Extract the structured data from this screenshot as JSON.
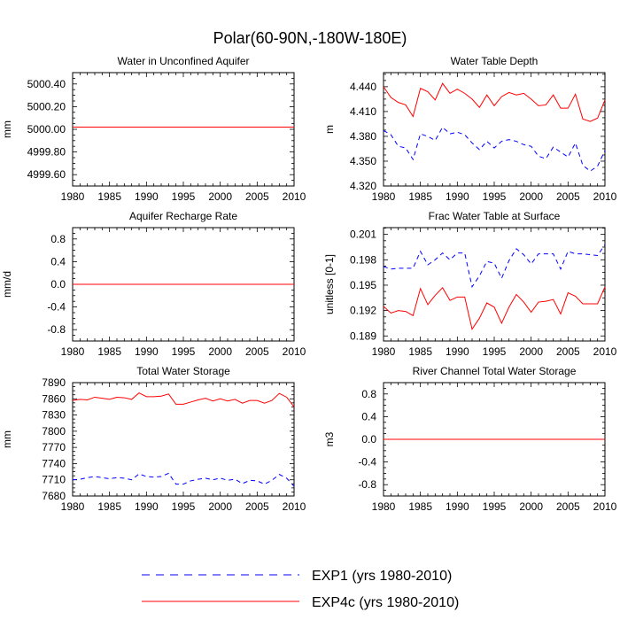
{
  "figure_title": "Polar(60-90N,-180W-180E)",
  "legend": {
    "entries": [
      {
        "label": "EXP1 (yrs 1980-2010)",
        "color": "#0000ff",
        "style": "dashed"
      },
      {
        "label": "EXP4c (yrs 1980-2010)",
        "color": "#ff0000",
        "style": "solid"
      }
    ]
  },
  "chart_data": [
    {
      "type": "line",
      "title": "Water in Unconfined Aquifer",
      "xlabel": "",
      "ylabel": "mm",
      "xlim": [
        1980,
        2010
      ],
      "ylim": [
        4999.5,
        5000.5
      ],
      "xticks": [
        1980,
        1985,
        1990,
        1995,
        2000,
        2005,
        2010
      ],
      "yticks": [
        5000.4,
        5000.2,
        5000.0,
        4999.8,
        4999.6
      ],
      "ytick_labels": [
        "5000.40",
        "5000.20",
        "5000.00",
        "4999.80",
        "4999.60"
      ],
      "x": [
        1980,
        1981,
        1982,
        1983,
        1984,
        1985,
        1986,
        1987,
        1988,
        1989,
        1990,
        1991,
        1992,
        1993,
        1994,
        1995,
        1996,
        1997,
        1998,
        1999,
        2000,
        2001,
        2002,
        2003,
        2004,
        2005,
        2006,
        2007,
        2008,
        2009,
        2010
      ],
      "series": [
        {
          "name": "EXP1",
          "color": "#0000ff",
          "dash": true,
          "values": [
            5000.02,
            5000.02,
            5000.02,
            5000.02,
            5000.02,
            5000.02,
            5000.02,
            5000.02,
            5000.02,
            5000.02,
            5000.02,
            5000.02,
            5000.02,
            5000.02,
            5000.02,
            5000.02,
            5000.02,
            5000.02,
            5000.02,
            5000.02,
            5000.02,
            5000.02,
            5000.02,
            5000.02,
            5000.02,
            5000.02,
            5000.02,
            5000.02,
            5000.02,
            5000.02,
            5000.02
          ]
        },
        {
          "name": "EXP4c",
          "color": "#ff0000",
          "dash": false,
          "values": [
            5000.02,
            5000.02,
            5000.02,
            5000.02,
            5000.02,
            5000.02,
            5000.02,
            5000.02,
            5000.02,
            5000.02,
            5000.02,
            5000.02,
            5000.02,
            5000.02,
            5000.02,
            5000.02,
            5000.02,
            5000.02,
            5000.02,
            5000.02,
            5000.02,
            5000.02,
            5000.02,
            5000.02,
            5000.02,
            5000.02,
            5000.02,
            5000.02,
            5000.02,
            5000.02,
            5000.02
          ]
        }
      ]
    },
    {
      "type": "line",
      "title": "Water Table Depth",
      "xlabel": "",
      "ylabel": "m",
      "xlim": [
        1980,
        2010
      ],
      "ylim": [
        4.32,
        4.457
      ],
      "xticks": [
        1980,
        1985,
        1990,
        1995,
        2000,
        2005,
        2010
      ],
      "yticks": [
        4.44,
        4.41,
        4.38,
        4.35,
        4.32
      ],
      "ytick_labels": [
        "4.440",
        "4.410",
        "4.380",
        "4.350",
        "4.320"
      ],
      "x": [
        1980,
        1981,
        1982,
        1983,
        1984,
        1985,
        1986,
        1987,
        1988,
        1989,
        1990,
        1991,
        1992,
        1993,
        1994,
        1995,
        1996,
        1997,
        1998,
        1999,
        2000,
        2001,
        2002,
        2003,
        2004,
        2005,
        2006,
        2007,
        2008,
        2009,
        2010
      ],
      "series": [
        {
          "name": "EXP1",
          "color": "#0000ff",
          "dash": true,
          "values": [
            4.387,
            4.382,
            4.368,
            4.366,
            4.352,
            4.383,
            4.38,
            4.375,
            4.391,
            4.383,
            4.385,
            4.382,
            4.372,
            4.364,
            4.374,
            4.366,
            4.374,
            4.376,
            4.374,
            4.37,
            4.368,
            4.356,
            4.353,
            4.367,
            4.361,
            4.355,
            4.372,
            4.345,
            4.338,
            4.344,
            4.363
          ]
        },
        {
          "name": "EXP4c",
          "color": "#ff0000",
          "dash": false,
          "values": [
            4.44,
            4.427,
            4.421,
            4.418,
            4.404,
            4.438,
            4.434,
            4.424,
            4.444,
            4.432,
            4.437,
            4.432,
            4.425,
            4.415,
            4.43,
            4.417,
            4.428,
            4.433,
            4.43,
            4.432,
            4.425,
            4.417,
            4.418,
            4.43,
            4.414,
            4.414,
            4.431,
            4.401,
            4.398,
            4.402,
            4.424
          ]
        }
      ]
    },
    {
      "type": "line",
      "title": "Aquifer Recharge Rate",
      "xlabel": "",
      "ylabel": "mm/d",
      "xlim": [
        1980,
        2010
      ],
      "ylim": [
        -1.0,
        1.0
      ],
      "xticks": [
        1980,
        1985,
        1990,
        1995,
        2000,
        2005,
        2010
      ],
      "yticks": [
        0.8,
        0.4,
        0.0,
        -0.4,
        -0.8
      ],
      "ytick_labels": [
        "0.8",
        "0.4",
        "0.0",
        "-0.4",
        "-0.8"
      ],
      "x": [
        1980,
        1981,
        1982,
        1983,
        1984,
        1985,
        1986,
        1987,
        1988,
        1989,
        1990,
        1991,
        1992,
        1993,
        1994,
        1995,
        1996,
        1997,
        1998,
        1999,
        2000,
        2001,
        2002,
        2003,
        2004,
        2005,
        2006,
        2007,
        2008,
        2009,
        2010
      ],
      "series": [
        {
          "name": "EXP1",
          "color": "#0000ff",
          "dash": true,
          "values": [
            0,
            0,
            0,
            0,
            0,
            0,
            0,
            0,
            0,
            0,
            0,
            0,
            0,
            0,
            0,
            0,
            0,
            0,
            0,
            0,
            0,
            0,
            0,
            0,
            0,
            0,
            0,
            0,
            0,
            0,
            0
          ]
        },
        {
          "name": "EXP4c",
          "color": "#ff0000",
          "dash": false,
          "values": [
            0,
            0,
            0,
            0,
            0,
            0,
            0,
            0,
            0,
            0,
            0,
            0,
            0,
            0,
            0,
            0,
            0,
            0,
            0,
            0,
            0,
            0,
            0,
            0,
            0,
            0,
            0,
            0,
            0,
            0,
            0
          ]
        }
      ]
    },
    {
      "type": "line",
      "title": "Frac Water Table at Surface",
      "xlabel": "",
      "ylabel": "unitless [0-1]",
      "xlim": [
        1980,
        2010
      ],
      "ylim": [
        0.1884,
        0.2018
      ],
      "xticks": [
        1980,
        1985,
        1990,
        1995,
        2000,
        2005,
        2010
      ],
      "yticks": [
        0.201,
        0.198,
        0.195,
        0.192,
        0.189
      ],
      "ytick_labels": [
        "0.201",
        "0.198",
        "0.195",
        "0.192",
        "0.189"
      ],
      "x": [
        1980,
        1981,
        1982,
        1983,
        1984,
        1985,
        1986,
        1987,
        1988,
        1989,
        1990,
        1991,
        1992,
        1993,
        1994,
        1995,
        1996,
        1997,
        1998,
        1999,
        2000,
        2001,
        2002,
        2003,
        2004,
        2005,
        2006,
        2007,
        2008,
        2009,
        2010
      ],
      "series": [
        {
          "name": "EXP1",
          "color": "#0000ff",
          "dash": true,
          "values": [
            0.1972,
            0.1969,
            0.197,
            0.197,
            0.197,
            0.199,
            0.1974,
            0.198,
            0.1988,
            0.198,
            0.1988,
            0.1988,
            0.1948,
            0.1961,
            0.1978,
            0.1976,
            0.1958,
            0.1979,
            0.1993,
            0.1986,
            0.1975,
            0.1987,
            0.1987,
            0.1987,
            0.1969,
            0.199,
            0.1987,
            0.1987,
            0.1986,
            0.1985,
            0.1998
          ]
        },
        {
          "name": "EXP4c",
          "color": "#ff0000",
          "dash": false,
          "values": [
            0.1925,
            0.1917,
            0.192,
            0.1919,
            0.1914,
            0.1946,
            0.1927,
            0.1938,
            0.1947,
            0.1932,
            0.1936,
            0.1936,
            0.1898,
            0.1911,
            0.1929,
            0.1924,
            0.1905,
            0.1924,
            0.1939,
            0.193,
            0.1918,
            0.193,
            0.1931,
            0.1933,
            0.1916,
            0.1941,
            0.1937,
            0.1928,
            0.1928,
            0.1928,
            0.1948
          ]
        }
      ]
    },
    {
      "type": "line",
      "title": "Total Water Storage",
      "xlabel": "",
      "ylabel": "mm",
      "xlim": [
        1980,
        2010
      ],
      "ylim": [
        7680,
        7890
      ],
      "xticks": [
        1980,
        1985,
        1990,
        1995,
        2000,
        2005,
        2010
      ],
      "yticks": [
        7890,
        7860,
        7830,
        7800,
        7770,
        7740,
        7710,
        7680
      ],
      "ytick_labels": [
        "7890",
        "7860",
        "7830",
        "7800",
        "7770",
        "7740",
        "7710",
        "7680"
      ],
      "x": [
        1980,
        1981,
        1982,
        1983,
        1984,
        1985,
        1986,
        1987,
        1988,
        1989,
        1990,
        1991,
        1992,
        1993,
        1994,
        1995,
        1996,
        1997,
        1998,
        1999,
        2000,
        2001,
        2002,
        2003,
        2004,
        2005,
        2006,
        2007,
        2008,
        2009,
        2010
      ],
      "series": [
        {
          "name": "EXP1",
          "color": "#0000ff",
          "dash": true,
          "values": [
            7710,
            7711,
            7714,
            7716,
            7714,
            7712,
            7714,
            7713,
            7710,
            7721,
            7716,
            7715,
            7716,
            7722,
            7702,
            7702,
            7708,
            7711,
            7713,
            7710,
            7713,
            7709,
            7711,
            7703,
            7709,
            7708,
            7702,
            7709,
            7720,
            7713,
            7698
          ]
        },
        {
          "name": "EXP4c",
          "color": "#ff0000",
          "dash": false,
          "values": [
            7857,
            7859,
            7858,
            7863,
            7861,
            7859,
            7863,
            7862,
            7859,
            7871,
            7864,
            7864,
            7865,
            7869,
            7850,
            7850,
            7854,
            7858,
            7861,
            7856,
            7860,
            7856,
            7859,
            7852,
            7857,
            7857,
            7852,
            7857,
            7870,
            7863,
            7845
          ]
        }
      ]
    },
    {
      "type": "line",
      "title": "River Channel Total Water Storage",
      "xlabel": "",
      "ylabel": "m3",
      "xlim": [
        1980,
        2010
      ],
      "ylim": [
        -1.0,
        1.0
      ],
      "xticks": [
        1980,
        1985,
        1990,
        1995,
        2000,
        2005,
        2010
      ],
      "yticks": [
        0.8,
        0.4,
        0.0,
        -0.4,
        -0.8
      ],
      "ytick_labels": [
        "0.8",
        "0.4",
        "0.0",
        "-0.4",
        "-0.8"
      ],
      "x": [
        1980,
        1981,
        1982,
        1983,
        1984,
        1985,
        1986,
        1987,
        1988,
        1989,
        1990,
        1991,
        1992,
        1993,
        1994,
        1995,
        1996,
        1997,
        1998,
        1999,
        2000,
        2001,
        2002,
        2003,
        2004,
        2005,
        2006,
        2007,
        2008,
        2009,
        2010
      ],
      "series": [
        {
          "name": "EXP1",
          "color": "#0000ff",
          "dash": true,
          "values": [
            0,
            0,
            0,
            0,
            0,
            0,
            0,
            0,
            0,
            0,
            0,
            0,
            0,
            0,
            0,
            0,
            0,
            0,
            0,
            0,
            0,
            0,
            0,
            0,
            0,
            0,
            0,
            0,
            0,
            0,
            0
          ]
        },
        {
          "name": "EXP4c",
          "color": "#ff0000",
          "dash": false,
          "values": [
            0,
            0,
            0,
            0,
            0,
            0,
            0,
            0,
            0,
            0,
            0,
            0,
            0,
            0,
            0,
            0,
            0,
            0,
            0,
            0,
            0,
            0,
            0,
            0,
            0,
            0,
            0,
            0,
            0,
            0,
            0
          ]
        }
      ]
    }
  ]
}
